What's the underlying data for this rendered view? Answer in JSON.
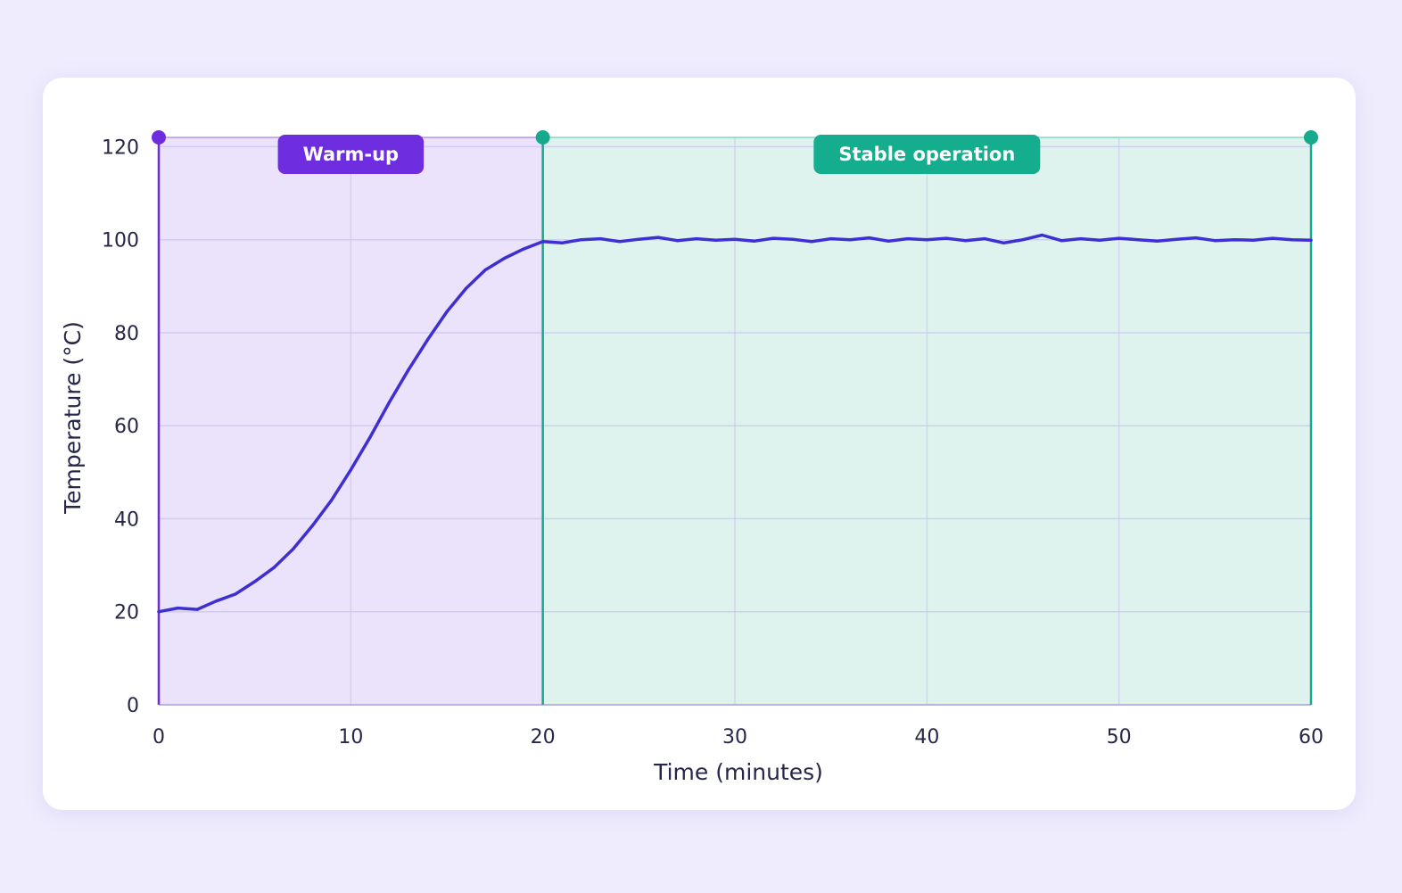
{
  "chart_data": {
    "type": "line",
    "title": "",
    "xlabel": "Time (minutes)",
    "ylabel": "Temperature (°C)",
    "xlim": [
      0,
      60
    ],
    "ylim": [
      0,
      122
    ],
    "x_ticks": [
      0,
      10,
      20,
      30,
      40,
      50,
      60
    ],
    "y_ticks": [
      0,
      20,
      40,
      60,
      80,
      100,
      120
    ],
    "grid": true,
    "line_color": "#3d2fd2",
    "phases": [
      {
        "label": "Warm-up",
        "x_start": 0,
        "x_end": 20,
        "fill_color": "#ebe2fb",
        "border_color": "#6f2de0",
        "badge_color": "#6f2de0"
      },
      {
        "label": "Stable operation",
        "x_start": 20,
        "x_end": 60,
        "fill_color": "#def3ee",
        "border_color": "#16a98c",
        "badge_color": "#14ad8d"
      }
    ],
    "series": [
      {
        "x": [
          0,
          1,
          2,
          3,
          4,
          5,
          6,
          7,
          8,
          9,
          10,
          11,
          12,
          13,
          14,
          15,
          16,
          17,
          18,
          19,
          20,
          21,
          22,
          23,
          24,
          25,
          26,
          27,
          28,
          29,
          30,
          31,
          32,
          33,
          34,
          35,
          36,
          37,
          38,
          39,
          40,
          41,
          42,
          43,
          44,
          45,
          46,
          47,
          48,
          49,
          50,
          51,
          52,
          53,
          54,
          55,
          56,
          57,
          58,
          59,
          60
        ],
        "values": [
          20,
          20.8,
          20.5,
          22.3,
          23.8,
          26.5,
          29.5,
          33.5,
          38.5,
          44,
          50.5,
          57.5,
          65,
          72,
          78.5,
          84.5,
          89.5,
          93.5,
          96,
          98,
          99.6,
          99.3,
          100,
          100.2,
          99.6,
          100.1,
          100.5,
          99.8,
          100.2,
          99.9,
          100.1,
          99.7,
          100.3,
          100.1,
          99.6,
          100.2,
          100,
          100.4,
          99.7,
          100.2,
          100,
          100.3,
          99.8,
          100.2,
          99.3,
          100,
          101,
          99.8,
          100.2,
          99.9,
          100.3,
          100,
          99.7,
          100.1,
          100.4,
          99.8,
          100,
          99.9,
          100.3,
          100,
          99.9
        ]
      }
    ]
  }
}
